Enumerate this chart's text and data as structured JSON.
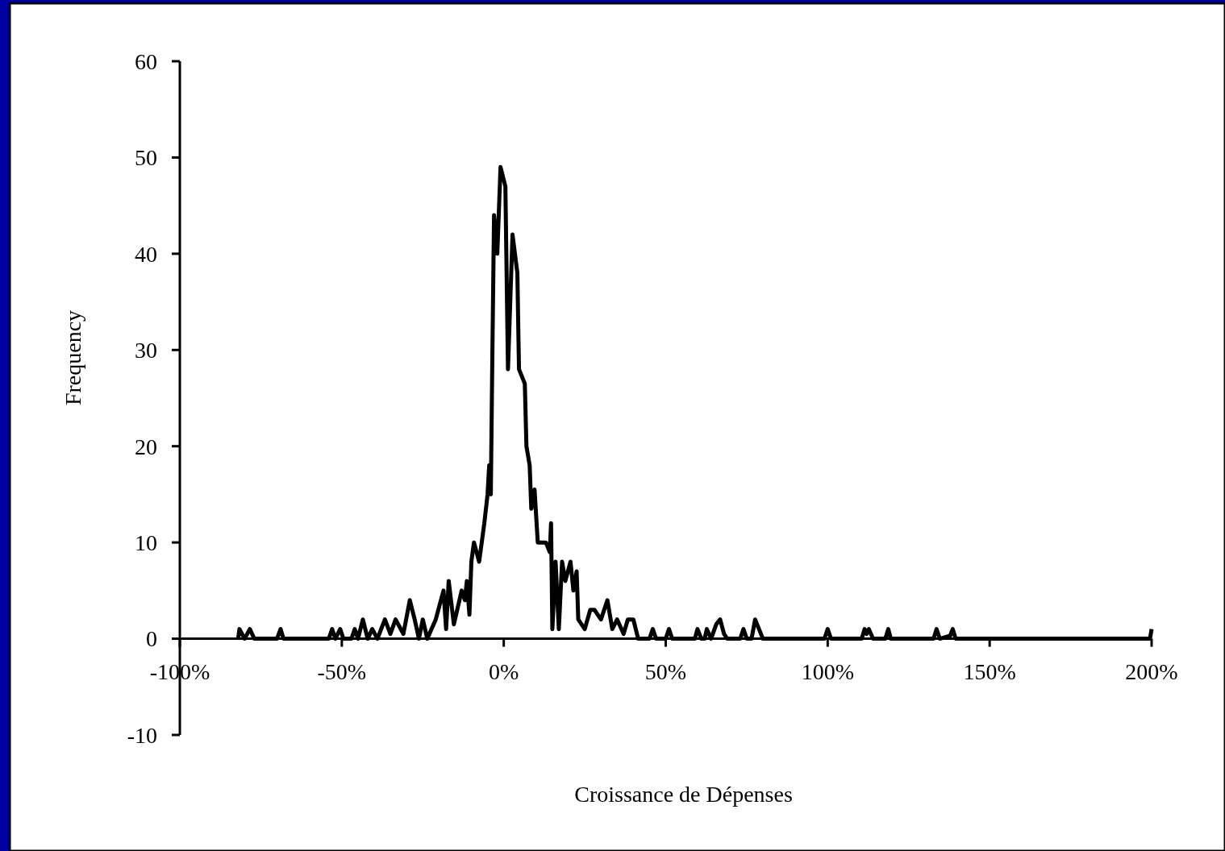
{
  "chart_data": {
    "type": "line",
    "xlabel": "Croissance de Dépenses",
    "ylabel": "Frequency",
    "xlim": [
      -100,
      200
    ],
    "ylim": [
      -10,
      60
    ],
    "xticks": [
      {
        "value": -100,
        "label": "-100%"
      },
      {
        "value": -50,
        "label": "-50%"
      },
      {
        "value": 0,
        "label": "0%"
      },
      {
        "value": 50,
        "label": "50%"
      },
      {
        "value": 100,
        "label": "100%"
      },
      {
        "value": 150,
        "label": "150%"
      },
      {
        "value": 200,
        "label": "200%"
      }
    ],
    "yticks": [
      -10,
      0,
      10,
      20,
      30,
      40,
      50,
      60
    ],
    "grid": false,
    "marker": "none",
    "line_style": "solid",
    "series": [
      {
        "color": "#000000",
        "x": [
          -82,
          -81.6,
          -80,
          -78.4,
          -77,
          -70,
          -68.9,
          -68,
          -54,
          -53,
          -52,
          -50.5,
          -49.5,
          -47,
          -46,
          -45,
          -43.5,
          -42,
          -40.6,
          -39,
          -36.7,
          -35,
          -33.4,
          -31,
          -29,
          -27.5,
          -26.2,
          -25,
          -23.6,
          -21,
          -18.6,
          -17.8,
          -17,
          -15.4,
          -13,
          -12,
          -11.4,
          -10.6,
          -10,
          -9.2,
          -7.6,
          -6,
          -5,
          -4.5,
          -4,
          -3.5,
          -3,
          -2,
          -1,
          0.5,
          1.3,
          2.7,
          4.2,
          4.7,
          6.5,
          7,
          8,
          8.5,
          9.5,
          10.5,
          13,
          14.2,
          14.6,
          15,
          16,
          17,
          18,
          19,
          20.6,
          21.5,
          22.5,
          23,
          25,
          26.7,
          28,
          30,
          32,
          33.5,
          35,
          37,
          38.3,
          40,
          41.5,
          45,
          46,
          47,
          50,
          51,
          52,
          59,
          59.8,
          61,
          62,
          62.7,
          64,
          65.6,
          66.8,
          68,
          69,
          73,
          74,
          75,
          76.5,
          77.6,
          80,
          99,
          100,
          101,
          110.5,
          111.4,
          112,
          112.7,
          114,
          117.8,
          118.7,
          119.5,
          132.7,
          133.6,
          134.6,
          137.8,
          138.6,
          139.5,
          199.5,
          200
        ],
        "values": [
          0,
          1,
          0,
          1,
          0,
          0,
          1,
          0,
          0,
          1,
          0,
          1,
          0,
          0,
          1,
          0,
          2,
          0,
          1,
          0,
          2,
          0.5,
          2,
          0.5,
          4,
          2,
          0,
          2,
          0,
          2,
          5,
          1,
          6,
          1.5,
          5,
          4,
          6,
          2.5,
          8,
          10,
          8,
          12,
          15,
          18,
          15,
          30,
          44,
          40,
          49,
          47,
          28,
          42,
          38,
          28,
          26.5,
          20,
          18,
          13.5,
          15.5,
          10,
          10,
          9,
          12,
          1,
          8,
          1,
          8,
          6,
          8,
          5,
          7,
          2,
          1,
          3,
          3,
          2,
          4,
          1,
          2,
          0.5,
          2,
          2,
          0,
          0,
          1,
          0,
          0,
          1,
          0,
          0,
          1,
          0,
          0,
          1,
          0,
          1.5,
          2,
          0.5,
          0,
          0,
          1,
          0,
          0,
          2,
          0,
          0,
          1,
          0,
          0,
          1,
          0.5,
          1,
          0,
          0,
          1,
          0,
          0,
          1,
          0,
          0.3,
          1,
          0,
          0,
          1
        ]
      }
    ]
  }
}
